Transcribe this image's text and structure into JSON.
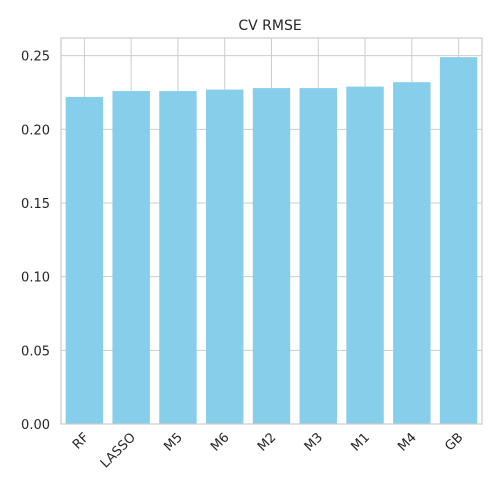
{
  "chart_data": {
    "type": "bar",
    "title": "CV RMSE",
    "xlabel": "",
    "ylabel": "",
    "categories": [
      "RF",
      "LASSO",
      "M5",
      "M6",
      "M2",
      "M3",
      "M1",
      "M4",
      "GB"
    ],
    "values": [
      0.222,
      0.226,
      0.226,
      0.227,
      0.228,
      0.228,
      0.229,
      0.232,
      0.249
    ],
    "ylim": [
      0,
      0.262
    ],
    "yticks": [
      "0.00",
      "0.05",
      "0.10",
      "0.15",
      "0.20",
      "0.25"
    ],
    "grid": true,
    "bar_color": "#87ceeb",
    "xtick_rotation": "45deg"
  }
}
